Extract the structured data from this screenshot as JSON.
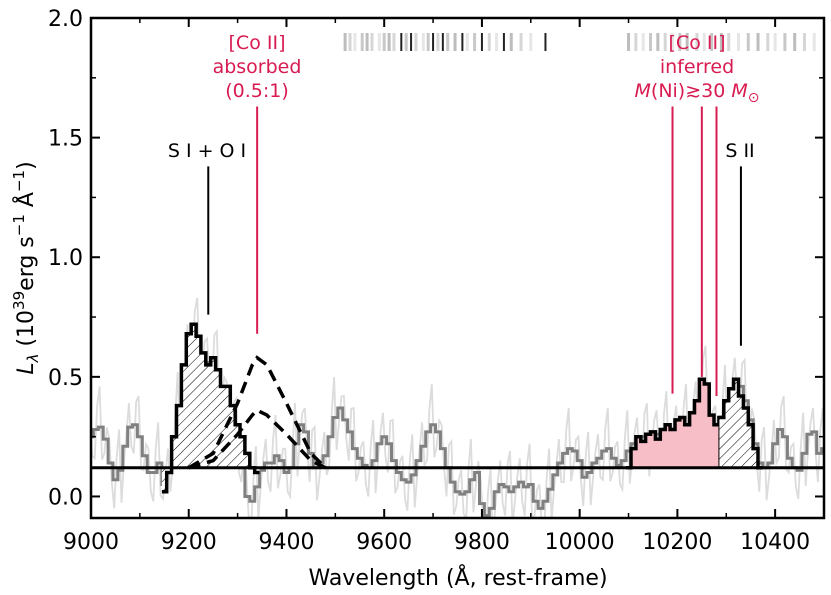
{
  "chart_data": {
    "type": "line",
    "xlabel": "Wavelength (Å, rest-frame)",
    "ylabel": "L_λ (10^39 erg s^-1 Å^-1)",
    "ylabel_parts": {
      "lead": "L",
      "sub": "λ",
      "open": " (10",
      "exp1": "39",
      "mid": "erg s",
      "exp2": "−1",
      "tail": " Å",
      "exp3": "−1",
      "close": ")"
    },
    "xlim": [
      9000,
      10500
    ],
    "ylim": [
      -0.09,
      2.0
    ],
    "xticks": [
      9000,
      9200,
      9400,
      9600,
      9800,
      10000,
      10200,
      10400
    ],
    "yticks": [
      0.0,
      0.5,
      1.0,
      1.5,
      2.0
    ],
    "ytick_labels": [
      "0.0",
      "0.5",
      "1.0",
      "1.5",
      "2.0"
    ],
    "continuum_level": 0.12,
    "colors": {
      "highlight": "#d81b50",
      "pink_fill": "#f8bec8",
      "gray_spectrum": "#808080",
      "raw_spectrum": "#dcdcdc",
      "black": "#000000"
    },
    "series": [
      {
        "role": "binned-spectrum-gray",
        "x": [
          9000,
          9010,
          9020,
          9030,
          9040,
          9050,
          9060,
          9070,
          9080,
          9090,
          9100,
          9110,
          9120,
          9130,
          9140,
          9150,
          9160,
          9170,
          9180,
          9190,
          9200,
          9210,
          9220,
          9230,
          9240,
          9250,
          9260,
          9270,
          9280,
          9290,
          9300,
          9310,
          9320,
          9330,
          9340,
          9350,
          9360,
          9370,
          9380,
          9390,
          9400,
          9410,
          9420,
          9430,
          9440,
          9450,
          9460,
          9470,
          9480,
          9490,
          9500,
          9510,
          9520,
          9530,
          9540,
          9550,
          9560,
          9570,
          9580,
          9590,
          9600,
          9610,
          9620,
          9630,
          9640,
          9650,
          9660,
          9670,
          9680,
          9690,
          9700,
          9710,
          9720,
          9730,
          9740,
          9750,
          9760,
          9770,
          9780,
          9790,
          9800,
          9810,
          9820,
          9830,
          9840,
          9850,
          9860,
          9870,
          9880,
          9890,
          9900,
          9910,
          9920,
          9930,
          9940,
          9950,
          9960,
          9970,
          9980,
          9990,
          10000,
          10010,
          10020,
          10030,
          10040,
          10050,
          10060,
          10070,
          10080,
          10090,
          10100,
          10110,
          10120,
          10130,
          10140,
          10150,
          10160,
          10170,
          10180,
          10190,
          10200,
          10210,
          10220,
          10230,
          10240,
          10250,
          10260,
          10270,
          10280,
          10290,
          10300,
          10310,
          10320,
          10330,
          10340,
          10350,
          10360,
          10370,
          10380,
          10390,
          10400,
          10410,
          10420,
          10430,
          10440,
          10450,
          10460,
          10470,
          10480,
          10490,
          10500
        ],
        "y": [
          0.25,
          0.28,
          0.29,
          0.24,
          0.14,
          0.07,
          0.11,
          0.21,
          0.29,
          0.3,
          0.25,
          0.17,
          0.1,
          0.1,
          0.14,
          0.05,
          0.1,
          0.25,
          0.35,
          0.5,
          0.62,
          0.68,
          0.66,
          0.6,
          0.56,
          0.58,
          0.52,
          0.45,
          0.38,
          0.3,
          0.24,
          0.12,
          0.0,
          -0.02,
          0.04,
          0.11,
          0.14,
          0.14,
          0.17,
          0.15,
          0.1,
          0.12,
          0.22,
          0.3,
          0.27,
          0.18,
          0.12,
          0.14,
          0.17,
          0.25,
          0.33,
          0.37,
          0.32,
          0.27,
          0.2,
          0.16,
          0.13,
          0.12,
          0.15,
          0.22,
          0.25,
          0.22,
          0.15,
          0.1,
          0.07,
          0.06,
          0.09,
          0.15,
          0.21,
          0.27,
          0.3,
          0.27,
          0.2,
          0.12,
          0.06,
          0.02,
          0.01,
          0.02,
          0.07,
          0.1,
          -0.03,
          -0.08,
          -0.05,
          0.02,
          0.05,
          0.04,
          0.02,
          0.04,
          0.06,
          0.04,
          0.05,
          -0.02,
          -0.05,
          -0.02,
          0.03,
          0.09,
          0.14,
          0.18,
          0.2,
          0.19,
          0.15,
          0.08,
          0.1,
          0.14,
          0.16,
          0.19,
          0.2,
          0.16,
          0.13,
          0.15,
          0.19,
          0.22,
          0.23,
          0.25,
          0.22,
          0.27,
          0.26,
          0.25,
          0.27,
          0.26,
          0.28,
          0.27,
          0.3,
          0.34,
          0.38,
          0.48,
          0.46,
          0.31,
          0.28,
          0.3,
          0.38,
          0.44,
          0.48,
          0.46,
          0.4,
          0.32,
          0.22,
          0.14,
          0.12,
          0.14,
          0.22,
          0.28,
          0.25,
          0.16,
          0.12,
          0.11,
          0.18,
          0.26,
          0.27,
          0.18,
          0.2
        ]
      },
      {
        "role": "S I + O I feature (hatched)",
        "x": [
          9150,
          9160,
          9170,
          9180,
          9190,
          9200,
          9210,
          9220,
          9230,
          9240,
          9250,
          9260,
          9270,
          9280,
          9290,
          9300,
          9310,
          9320,
          9330,
          9340
        ],
        "y": [
          0.02,
          0.1,
          0.25,
          0.38,
          0.55,
          0.68,
          0.72,
          0.67,
          0.6,
          0.55,
          0.58,
          0.53,
          0.46,
          0.46,
          0.38,
          0.3,
          0.25,
          0.18,
          0.12,
          0.1
        ]
      },
      {
        "role": "[Co II] inferred feature (pink fill)",
        "x": [
          10100,
          10110,
          10120,
          10130,
          10140,
          10150,
          10160,
          10170,
          10180,
          10190,
          10200,
          10210,
          10220,
          10230,
          10240,
          10250,
          10260,
          10270,
          10280,
          10290
        ],
        "y": [
          0.12,
          0.2,
          0.25,
          0.23,
          0.26,
          0.27,
          0.24,
          0.28,
          0.3,
          0.28,
          0.32,
          0.33,
          0.3,
          0.35,
          0.4,
          0.49,
          0.47,
          0.34,
          0.3,
          0.33
        ]
      },
      {
        "role": "S II feature (hatched)",
        "x": [
          10290,
          10300,
          10310,
          10320,
          10330,
          10340,
          10350,
          10360,
          10370
        ],
        "y": [
          0.33,
          0.4,
          0.45,
          0.49,
          0.42,
          0.37,
          0.3,
          0.2,
          0.12
        ]
      },
      {
        "role": "[Co II] absorbed model (dashed, upper)",
        "x": [
          9200,
          9250,
          9300,
          9330,
          9340,
          9360,
          9400,
          9450,
          9480
        ],
        "y": [
          0.12,
          0.18,
          0.39,
          0.55,
          0.58,
          0.55,
          0.39,
          0.18,
          0.12
        ]
      },
      {
        "role": "[Co II] absorbed model (dashed, lower)",
        "x": [
          9200,
          9250,
          9300,
          9330,
          9340,
          9360,
          9400,
          9450,
          9480
        ],
        "y": [
          0.12,
          0.15,
          0.26,
          0.34,
          0.36,
          0.34,
          0.26,
          0.15,
          0.12
        ]
      }
    ],
    "line_markers": [
      {
        "x": 9240,
        "y_bottom": 0.76,
        "y_top": 1.38,
        "color": "#000000"
      },
      {
        "x": 9340,
        "y_bottom": 0.68,
        "y_top": 1.63,
        "color": "#d81b50"
      },
      {
        "x": 10190,
        "y_bottom": 0.43,
        "y_top": 1.63,
        "color": "#d81b50"
      },
      {
        "x": 10250,
        "y_bottom": 0.5,
        "y_top": 1.63,
        "color": "#d81b50"
      },
      {
        "x": 10280,
        "y_bottom": 0.42,
        "y_top": 1.63,
        "color": "#d81b50"
      },
      {
        "x": 10330,
        "y_bottom": 0.63,
        "y_top": 1.38,
        "color": "#000000"
      }
    ],
    "telluric_ticks_x": [
      9520,
      9530,
      9540,
      9555,
      9565,
      9575,
      9590,
      9600,
      9610,
      9620,
      9635,
      9645,
      9655,
      9665,
      9680,
      9690,
      9700,
      9710,
      9720,
      9730,
      9745,
      9760,
      9770,
      9785,
      9800,
      9815,
      9830,
      9845,
      9860,
      9880,
      9900,
      9930,
      10100,
      10115,
      10130,
      10145,
      10160,
      10175,
      10190,
      10205,
      10220,
      10240,
      10255,
      10270,
      10290,
      10305,
      10325,
      10345,
      10365,
      10385,
      10400,
      10420,
      10440,
      10460,
      10480
    ],
    "telluric_strong_x": [
      9635,
      9655,
      9700,
      9720,
      9760,
      9800,
      9845,
      9930
    ],
    "annotations": {
      "s1_o1": "S I + O I",
      "co_absorbed_1": "[Co II]",
      "co_absorbed_2": "absorbed",
      "co_absorbed_3": "(0.5:1)",
      "co_inferred_1": "[Co II]",
      "co_inferred_2": "inferred",
      "co_inferred_3a": "M",
      "co_inferred_3b": "(Ni)≳30 ",
      "co_inferred_3c": "M",
      "co_inferred_3d": "⊙",
      "s2": "S II"
    }
  }
}
